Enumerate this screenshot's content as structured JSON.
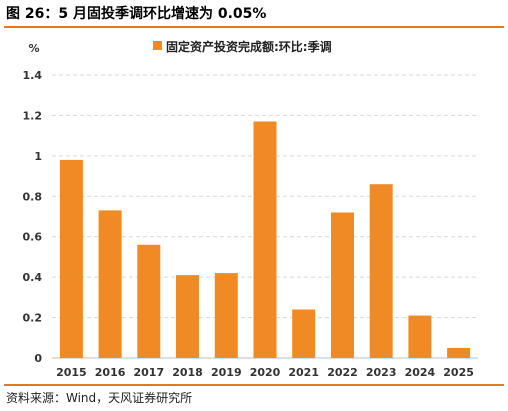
{
  "header": {
    "title": "图 26：5 月固投季调环比增速为 0.05%"
  },
  "footer": {
    "source": "资料来源：Wind，天风证券研究所"
  },
  "colors": {
    "accent": "#e07a1f",
    "bar": "#f08a24"
  },
  "chart_data": {
    "type": "bar",
    "categories": [
      "2015",
      "2016",
      "2017",
      "2018",
      "2019",
      "2020",
      "2021",
      "2022",
      "2023",
      "2024",
      "2025"
    ],
    "series": [
      {
        "name": "固定资产投资完成额:环比:季调",
        "values": [
          0.98,
          0.73,
          0.56,
          0.41,
          0.42,
          1.17,
          0.24,
          0.72,
          0.86,
          0.21,
          0.05
        ]
      }
    ],
    "ylabel": "%",
    "ylim": [
      0,
      1.4
    ],
    "yticks": [
      "0",
      "0.2",
      "0.4",
      "0.6",
      "0.8",
      "1",
      "1.2",
      "1.4"
    ],
    "grid": true,
    "legend_position": "top-center"
  }
}
